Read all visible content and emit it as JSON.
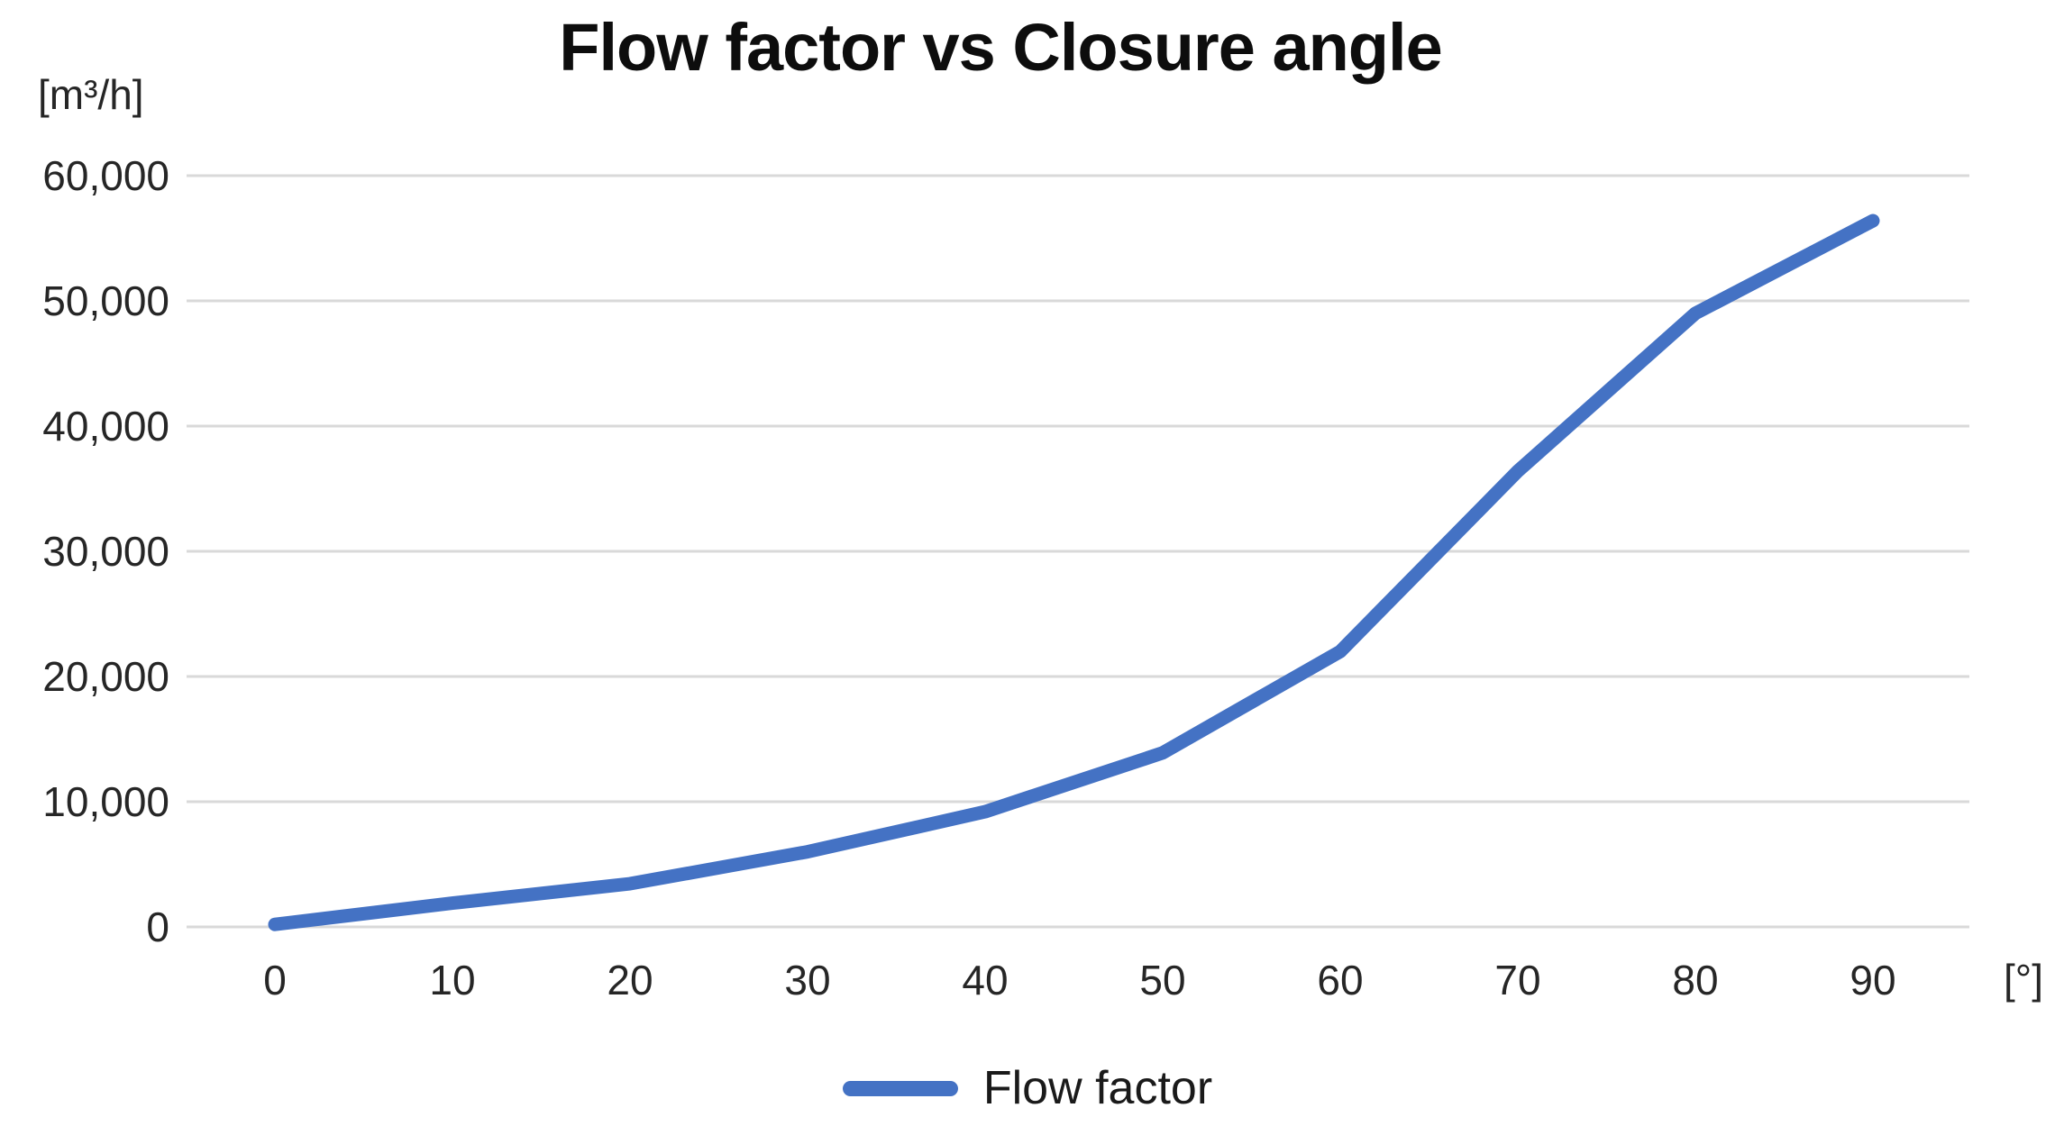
{
  "chart_data": {
    "type": "line",
    "title": "Flow factor vs Closure angle",
    "y_unit_label": "[m³/h]",
    "x_unit_label": "[°]",
    "xlabel": "Closure angle [°]",
    "ylabel": "Flow factor [m³/h]",
    "x": [
      0,
      10,
      20,
      30,
      40,
      50,
      60,
      70,
      80,
      90
    ],
    "series": [
      {
        "name": "Flow factor",
        "values": [
          200,
          1900,
          3450,
          6000,
          9200,
          13900,
          22000,
          36400,
          49000,
          56400
        ],
        "color": "#4472C4",
        "stroke_width": 15
      }
    ],
    "x_tick_labels": [
      "0",
      "10",
      "20",
      "30",
      "40",
      "50",
      "60",
      "70",
      "80",
      "90"
    ],
    "y_ticks": [
      0,
      10000,
      20000,
      30000,
      40000,
      50000,
      60000
    ],
    "y_tick_labels": [
      "0",
      "10,000",
      "20,000",
      "30,000",
      "40,000",
      "50,000",
      "60,000"
    ],
    "xlim": [
      0,
      90
    ],
    "ylim": [
      0,
      60000
    ],
    "grid": "horizontal-only",
    "gridline_color": "#D9D9D9",
    "text_color": "#262626",
    "legend_position": "bottom",
    "legend": [
      {
        "label": "Flow factor",
        "color": "#4472C4"
      }
    ]
  }
}
